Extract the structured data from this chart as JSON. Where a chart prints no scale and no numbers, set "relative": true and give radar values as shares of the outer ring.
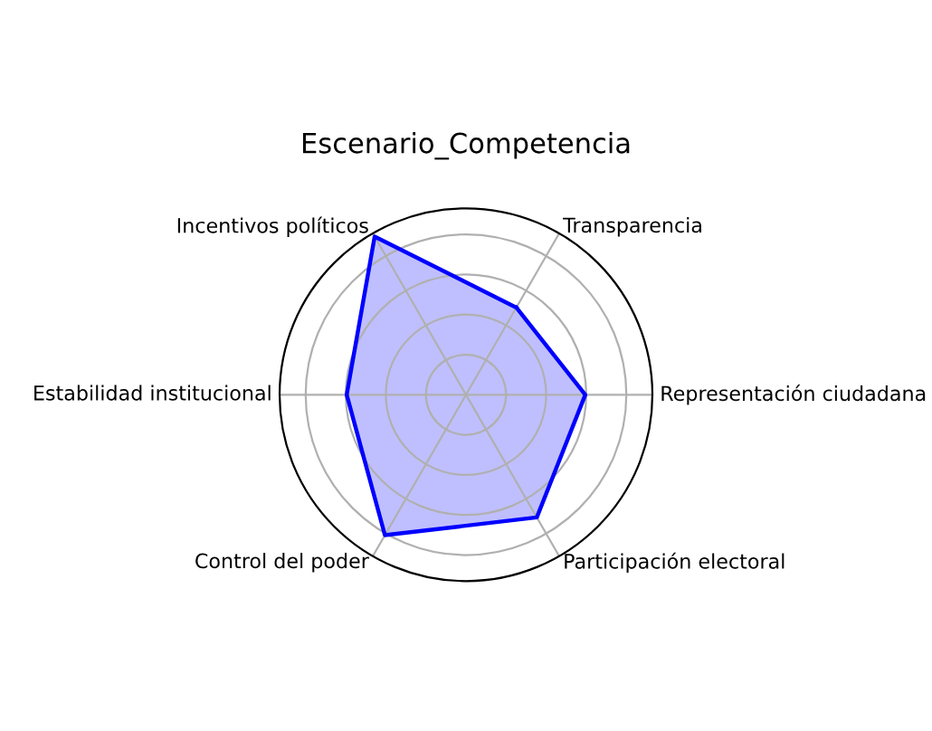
{
  "chart_data": {
    "type": "radar",
    "title": "Escenario_Competencia",
    "relative": true,
    "grid": true,
    "categories": [
      "Transparencia",
      "Representación ciudadana",
      "Participación electoral",
      "Control del poder",
      "Estabilidad institucional",
      "Incentivos políticos"
    ],
    "series": [
      {
        "color": "#0000ff",
        "values": [
          0.54,
          0.64,
          0.76,
          0.87,
          0.64,
          0.98
        ]
      }
    ]
  }
}
